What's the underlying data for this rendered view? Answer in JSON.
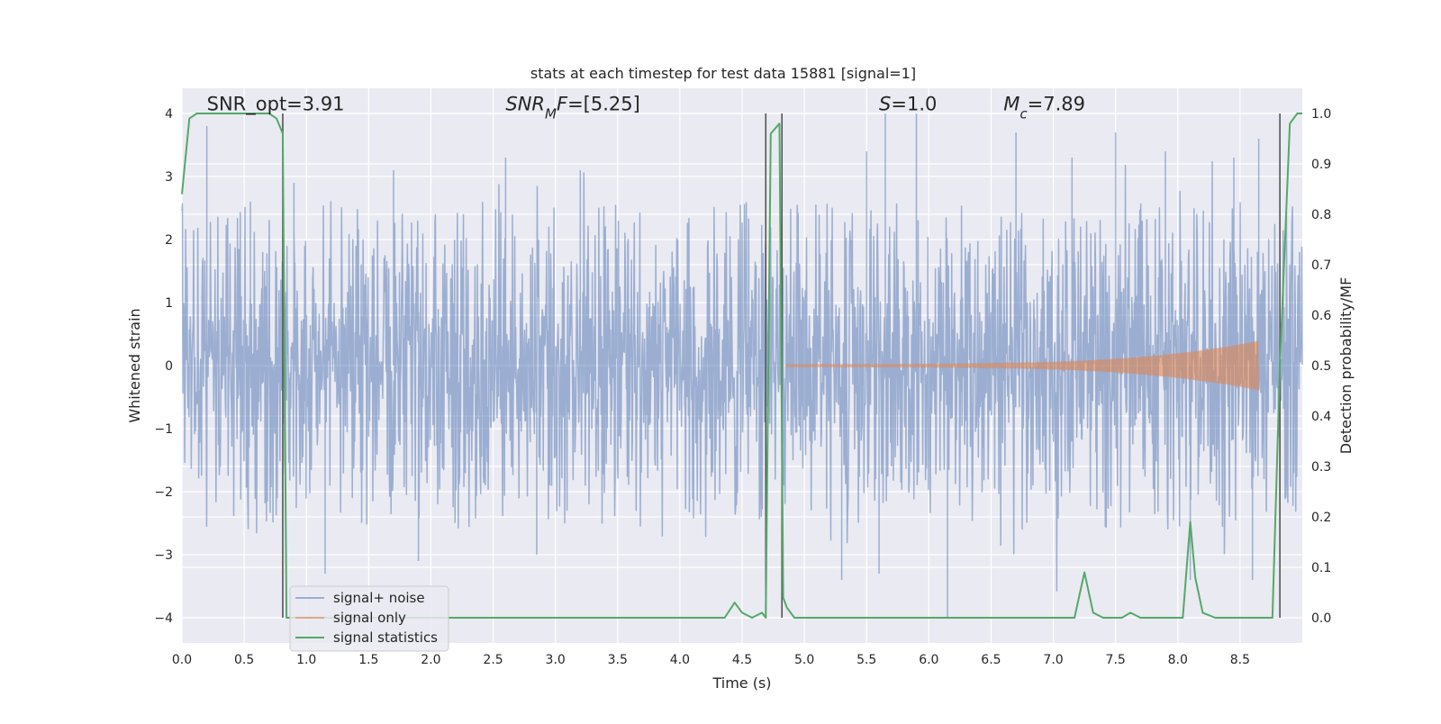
{
  "chart_data": {
    "type": "line",
    "title": "stats at each timestep for test data 15881 [signal=1]",
    "xlabel": "Time (s)",
    "ylabel_left": "Whitened strain",
    "ylabel_right": "Detection probability/MF",
    "xlim": [
      0.0,
      9.0
    ],
    "ylim_left": [
      -4.4,
      4.4
    ],
    "ylim_right": [
      -0.05,
      1.05
    ],
    "x_ticks": [
      0.0,
      0.5,
      1.0,
      1.5,
      2.0,
      2.5,
      3.0,
      3.5,
      4.0,
      4.5,
      5.0,
      5.5,
      6.0,
      6.5,
      7.0,
      7.5,
      8.0,
      8.5
    ],
    "x_tick_labels": [
      "0.0",
      "0.5",
      "1.0",
      "1.5",
      "2.0",
      "2.5",
      "3.0",
      "3.5",
      "4.0",
      "4.5",
      "5.0",
      "5.5",
      "6.0",
      "6.5",
      "7.0",
      "7.5",
      "8.0",
      "8.5"
    ],
    "y_left_ticks": [
      -4,
      -3,
      -2,
      -1,
      0,
      1,
      2,
      3,
      4
    ],
    "y_left_tick_labels": [
      "−4",
      "−3",
      "−2",
      "−1",
      "0",
      "1",
      "2",
      "3",
      "4"
    ],
    "y_right_ticks": [
      0.0,
      0.1,
      0.2,
      0.3,
      0.4,
      0.5,
      0.6,
      0.7,
      0.8,
      0.9,
      1.0
    ],
    "y_right_tick_labels": [
      "0.0",
      "0.1",
      "0.2",
      "0.3",
      "0.4",
      "0.5",
      "0.6",
      "0.7",
      "0.8",
      "0.9",
      "1.0"
    ],
    "grid": true,
    "legend_position": "lower-left",
    "annotations": [
      {
        "id": "snr-opt",
        "x": 0.2,
        "y": 4.05,
        "parts": [
          {
            "t": "SNR_opt=3.91",
            "i": false
          }
        ]
      },
      {
        "id": "snr-mf",
        "x": 2.6,
        "y": 4.05,
        "parts": [
          {
            "t": "SNR",
            "i": true
          },
          {
            "t": "M",
            "i": true,
            "sub": true
          },
          {
            "t": "F",
            "i": true
          },
          {
            "t": "=[5.25]",
            "i": false
          }
        ]
      },
      {
        "id": "s-stat",
        "x": 5.6,
        "y": 4.05,
        "parts": [
          {
            "t": "S",
            "i": true
          },
          {
            "t": "=1.0",
            "i": false
          }
        ]
      },
      {
        "id": "chirp-mass",
        "x": 6.6,
        "y": 4.05,
        "parts": [
          {
            "t": "M",
            "i": true
          },
          {
            "t": "c",
            "i": true,
            "sub": true
          },
          {
            "t": "=7.89",
            "i": false
          }
        ]
      }
    ],
    "vlines": [
      {
        "x": 0.81,
        "y0": -4.0,
        "y1": 4.0
      },
      {
        "x": 4.69,
        "y0": -4.0,
        "y1": 4.0
      },
      {
        "x": 4.82,
        "y0": -4.0,
        "y1": 4.0
      },
      {
        "x": 8.82,
        "y0": -4.0,
        "y1": 4.0
      }
    ],
    "series": [
      {
        "name": "signal+ noise",
        "axis": "left",
        "color": "#4c72b0",
        "opacity": 0.5,
        "kind": "noise",
        "x_range": [
          0.0,
          9.0
        ],
        "typical_envelope": [
          -1.6,
          1.6
        ],
        "peaks": [
          [
            0.2,
            3.8
          ],
          [
            0.55,
            2.6
          ],
          [
            0.9,
            2.9
          ],
          [
            1.15,
            -3.3
          ],
          [
            1.7,
            3.1
          ],
          [
            1.9,
            -3.1
          ],
          [
            2.6,
            3.3
          ],
          [
            2.85,
            -3.0
          ],
          [
            3.2,
            3.1
          ],
          [
            5.5,
            3.4
          ],
          [
            5.65,
            4.0
          ],
          [
            5.9,
            4.0
          ],
          [
            5.3,
            -3.4
          ],
          [
            5.6,
            -3.3
          ],
          [
            6.15,
            -4.0
          ],
          [
            6.7,
            3.7
          ],
          [
            7.5,
            3.7
          ],
          [
            7.15,
            3.3
          ],
          [
            7.9,
            3.4
          ],
          [
            8.1,
            -3.4
          ],
          [
            8.45,
            3.3
          ],
          [
            8.65,
            3.6
          ],
          [
            8.6,
            -3.4
          ]
        ]
      },
      {
        "name": "signal only",
        "axis": "left",
        "color": "#dd8452",
        "opacity": 0.6,
        "kind": "chirp",
        "x_range": [
          4.85,
          8.65
        ],
        "amplitude_start": 0.02,
        "amplitude_end": 0.4
      },
      {
        "name": "signal statistics",
        "axis": "right",
        "color": "#55a868",
        "kind": "line",
        "x": [
          0.0,
          0.06,
          0.12,
          0.2,
          0.3,
          0.4,
          0.5,
          0.6,
          0.7,
          0.76,
          0.81,
          0.84,
          0.9,
          1.0,
          1.5,
          2.0,
          2.5,
          3.0,
          3.5,
          4.0,
          4.36,
          4.44,
          4.5,
          4.58,
          4.66,
          4.69,
          4.73,
          4.8,
          4.83,
          4.86,
          4.92,
          5.0,
          5.5,
          6.0,
          6.5,
          7.0,
          7.17,
          7.25,
          7.32,
          7.4,
          7.55,
          7.62,
          7.7,
          7.8,
          8.04,
          8.1,
          8.14,
          8.2,
          8.3,
          8.6,
          8.76,
          8.82,
          8.9,
          8.96,
          9.0
        ],
        "y": [
          0.84,
          0.99,
          1.0,
          1.0,
          1.0,
          1.0,
          1.0,
          1.0,
          1.0,
          0.99,
          0.96,
          0.0,
          0.0,
          0.0,
          0.0,
          0.0,
          0.0,
          0.0,
          0.0,
          0.0,
          0.0,
          0.03,
          0.01,
          0.0,
          0.01,
          0.0,
          0.96,
          0.98,
          0.04,
          0.02,
          0.0,
          0.0,
          0.0,
          0.0,
          0.0,
          0.0,
          0.0,
          0.09,
          0.01,
          0.0,
          0.0,
          0.01,
          0.0,
          0.0,
          0.0,
          0.19,
          0.08,
          0.01,
          0.0,
          0.0,
          0.0,
          0.5,
          0.98,
          1.0,
          1.0
        ]
      }
    ]
  }
}
